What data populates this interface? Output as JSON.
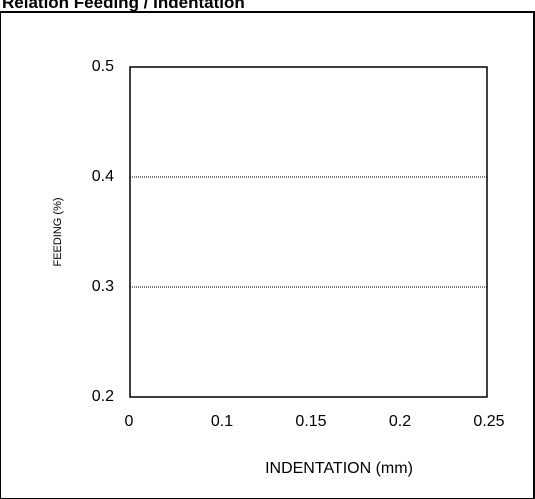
{
  "chart_data": {
    "type": "scatter",
    "title": "Relation Feeding / Indentation",
    "xlabel": "INDENTATION   (mm)",
    "ylabel": "FEEDING  (%)",
    "x_ticks": [
      "0",
      "0.1",
      "0.15",
      "0.2",
      "0.25"
    ],
    "y_ticks": [
      "0.5",
      "0.4",
      "0.3",
      "0.2"
    ],
    "xlim": [
      0,
      0.25
    ],
    "ylim": [
      0.2,
      0.5
    ],
    "grid_y": true,
    "gridline_style": "dotted",
    "series": []
  }
}
